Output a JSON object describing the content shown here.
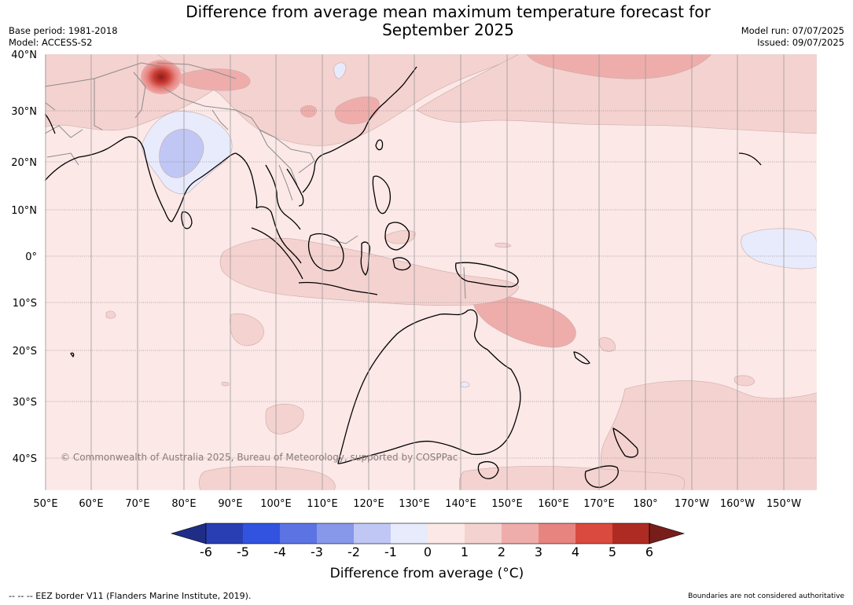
{
  "header": {
    "title_line1": "Difference from average mean maximum temperature forecast for",
    "title_line2": "September 2025",
    "base_period": "Base period: 1981-2018",
    "model": "Model: ACCESS-S2",
    "model_run": "Model run: 07/07/2025",
    "issued": "Issued: 09/07/2025"
  },
  "map": {
    "lat_labels": [
      "40°N",
      "30°N",
      "20°N",
      "10°N",
      "0°",
      "10°S",
      "20°S",
      "30°S",
      "40°S"
    ],
    "lon_labels": [
      "50°E",
      "60°E",
      "70°E",
      "80°E",
      "90°E",
      "100°E",
      "110°E",
      "120°E",
      "130°E",
      "140°E",
      "150°E",
      "160°E",
      "170°E",
      "180°",
      "170°W",
      "160°W",
      "150°W"
    ],
    "copyright": "© Commonwealth of Australia 2025, Bureau of Meteorology, supported by COSPPac",
    "colors": {
      "ocean_bg": "#fbe8e7",
      "warm_1_2": "#f4d2d0",
      "warm_2_3": "#eeadab",
      "warm_3_4": "#e78480",
      "warm_5_6": "#ae2b24",
      "cool_0_1": "#e8ebfb",
      "cool_1_2": "#c1c7f4",
      "coast": "#000000",
      "border": "#8c8c8c",
      "grid": "#555555"
    }
  },
  "colorbar": {
    "ticks": [
      "-6",
      "-5",
      "-4",
      "-3",
      "-2",
      "-1",
      "0",
      "1",
      "2",
      "3",
      "4",
      "5",
      "6"
    ],
    "colors": [
      "#1f2d86",
      "#2a3eb3",
      "#3253e0",
      "#5c74e3",
      "#8797ea",
      "#c1c7f4",
      "#e8ebfb",
      "#fbe8e7",
      "#f4d2d0",
      "#eeadab",
      "#e78480",
      "#db4a3e",
      "#ae2b24",
      "#781e1a"
    ],
    "label": "Difference from average ($^\\circ$C)",
    "label_display": "Difference from average (°C)"
  },
  "footer": {
    "eez_note": "--  --  -- EEZ border V11 (Flanders Marine Institute, 2019).",
    "boundaries_note": "Boundaries are not considered authoritative"
  }
}
